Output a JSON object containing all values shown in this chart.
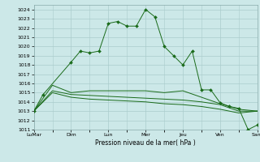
{
  "background_color": "#cce8e8",
  "grid_color": "#aacccc",
  "line_color": "#1a6b1a",
  "marker_color": "#1a6b1a",
  "xlabel": "Pression niveau de la mer( hPa )",
  "ylim": [
    1011,
    1024.5
  ],
  "yticks": [
    1011,
    1012,
    1013,
    1014,
    1015,
    1016,
    1017,
    1018,
    1019,
    1020,
    1021,
    1022,
    1023,
    1024
  ],
  "major_positions": [
    0,
    4,
    8,
    12,
    16,
    20,
    24
  ],
  "major_labels": [
    "LuMar",
    "Dim",
    "Lun",
    "Mer",
    "Jeu",
    "Ven",
    "Sam"
  ],
  "series1_x": [
    0,
    1,
    4,
    5,
    6,
    7,
    8,
    9,
    10,
    11,
    12,
    13,
    14,
    15,
    16,
    17,
    18,
    19,
    20,
    21,
    22,
    23,
    24
  ],
  "series1_y": [
    1013.0,
    1014.8,
    1018.3,
    1019.5,
    1019.3,
    1019.5,
    1022.5,
    1022.7,
    1022.2,
    1022.2,
    1024.0,
    1023.2,
    1020.0,
    1019.0,
    1018.0,
    1019.5,
    1015.3,
    1015.3,
    1013.9,
    1013.5,
    1013.3,
    1011.0,
    1011.5
  ],
  "series2_x": [
    0,
    2,
    4,
    6,
    8,
    10,
    12,
    14,
    16,
    18,
    20,
    22,
    24
  ],
  "series2_y": [
    1013.0,
    1015.8,
    1015.0,
    1015.2,
    1015.2,
    1015.2,
    1015.2,
    1015.0,
    1015.2,
    1014.5,
    1013.8,
    1013.2,
    1013.0
  ],
  "series3_x": [
    0,
    2,
    4,
    6,
    8,
    10,
    12,
    14,
    16,
    18,
    20,
    22,
    24
  ],
  "series3_y": [
    1013.0,
    1015.2,
    1014.8,
    1014.7,
    1014.6,
    1014.5,
    1014.4,
    1014.3,
    1014.2,
    1014.0,
    1013.7,
    1013.0,
    1013.0
  ],
  "series4_x": [
    0,
    2,
    4,
    6,
    8,
    10,
    12,
    14,
    16,
    18,
    20,
    22,
    24
  ],
  "series4_y": [
    1013.0,
    1015.0,
    1014.5,
    1014.3,
    1014.2,
    1014.1,
    1014.0,
    1013.8,
    1013.7,
    1013.5,
    1013.2,
    1012.8,
    1013.0
  ]
}
